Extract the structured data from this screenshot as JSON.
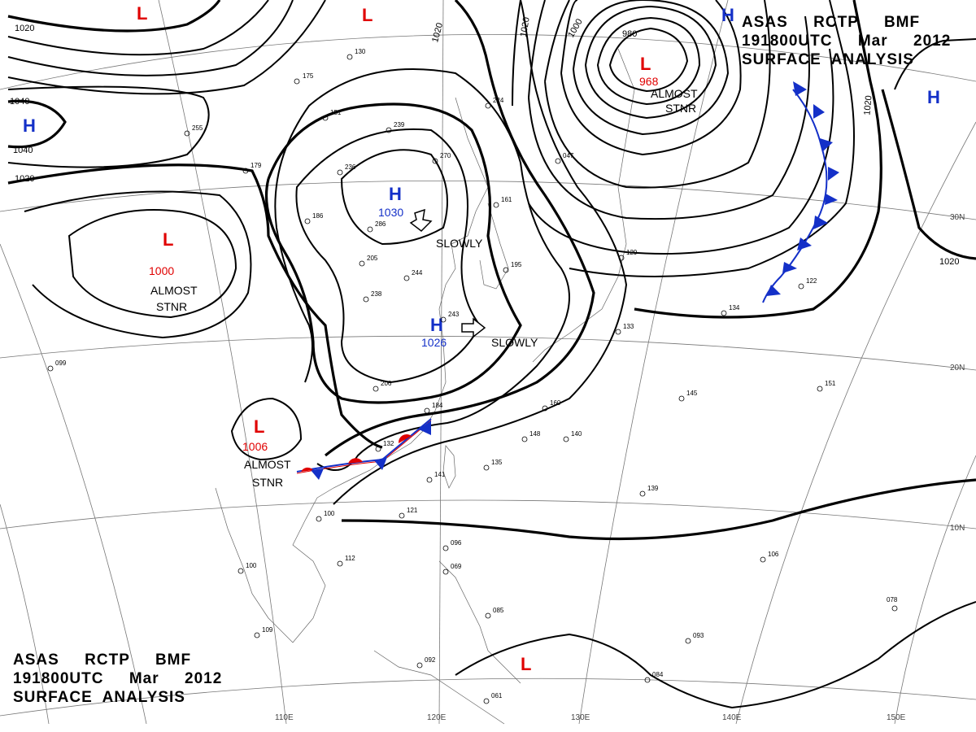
{
  "header_top": {
    "line1": "ASAS     RCTP     BMF",
    "line2": "191800UTC     Mar     2012",
    "line3": "SURFACE  ANALYSIS"
  },
  "header_bottom": {
    "line1": "ASAS     RCTP     BMF",
    "line2": "191800UTC     Mar     2012",
    "line3": "SURFACE  ANALYSIS"
  },
  "longitude_labels": [
    "110E",
    "120E",
    "130E",
    "140E",
    "150E"
  ],
  "latitude_labels": [
    "30N",
    "20N",
    "10N"
  ],
  "isobar_labels": [
    "1020",
    "1040",
    "1040",
    "1020",
    "1020",
    "1020",
    "980",
    "1000",
    "1020",
    "1020"
  ],
  "pressure_systems": [
    {
      "type": "L",
      "value": ""
    },
    {
      "type": "L",
      "value": ""
    },
    {
      "type": "L",
      "value": "968",
      "note1": "ALMOST",
      "note2": "STNR"
    },
    {
      "type": "L",
      "value": "1000",
      "note1": "ALMOST",
      "note2": "STNR"
    },
    {
      "type": "L",
      "value": "1006",
      "note1": "ALMOST",
      "note2": "STNR"
    },
    {
      "type": "L",
      "value": ""
    },
    {
      "type": "H",
      "value": "1030",
      "note1": "SLOWLY",
      "note2": ""
    },
    {
      "type": "H",
      "value": "1026",
      "note1": "SLOWLY",
      "note2": ""
    },
    {
      "type": "H",
      "value": ""
    },
    {
      "type": "H",
      "value": ""
    },
    {
      "type": "H",
      "value": ""
    }
  ],
  "station_numbers": [
    "175",
    "130",
    "151",
    "239",
    "270",
    "224",
    "236",
    "186",
    "286",
    "205",
    "244",
    "238",
    "243",
    "195",
    "206",
    "184",
    "132",
    "141",
    "135",
    "148",
    "140",
    "160",
    "139",
    "129",
    "133",
    "134",
    "145",
    "151",
    "122",
    "099",
    "100",
    "112",
    "121",
    "100",
    "109",
    "096",
    "069",
    "085",
    "092",
    "084",
    "093",
    "078",
    "106",
    "047",
    "161",
    "179",
    "255",
    "061"
  ],
  "colors": {
    "high": "#1430c8",
    "low": "#e00000",
    "cold_front": "#1430c8",
    "warm_front": "#e00000"
  }
}
